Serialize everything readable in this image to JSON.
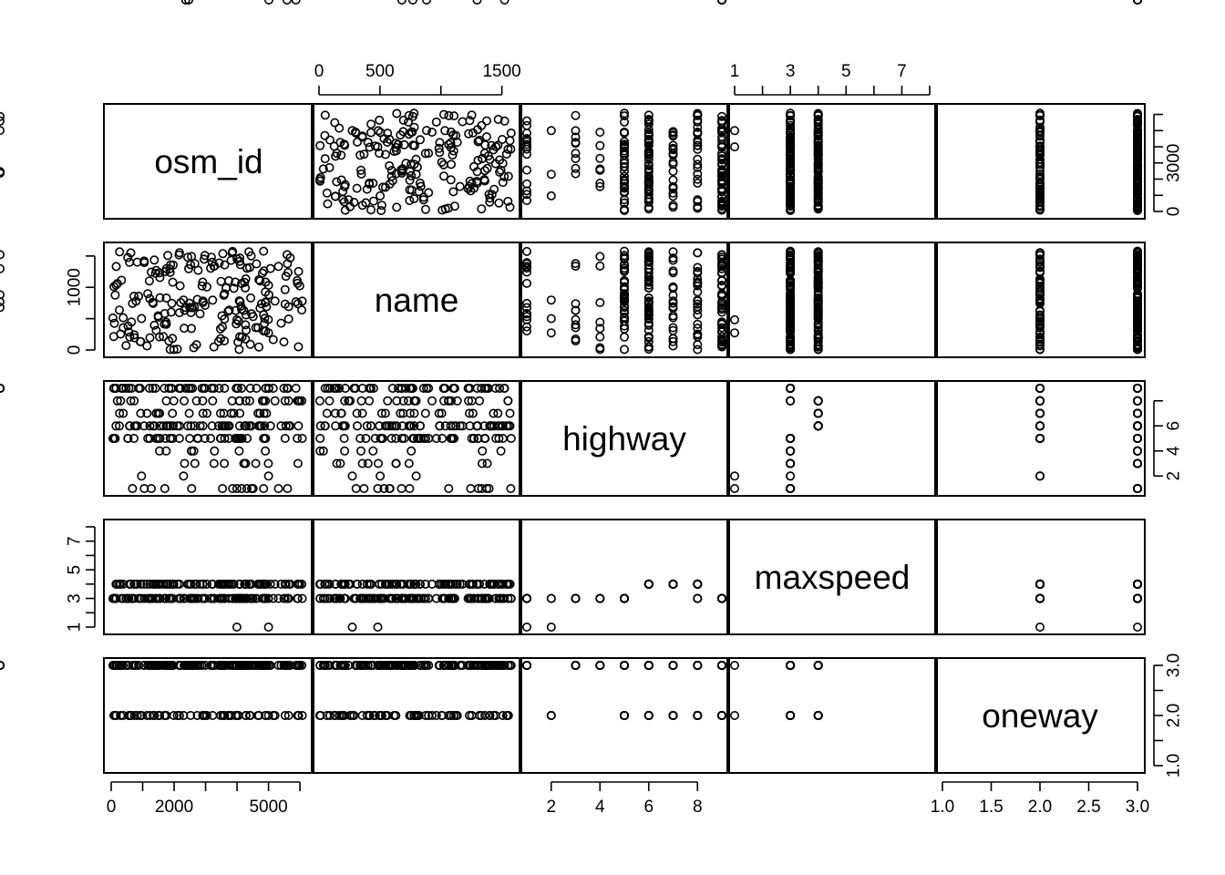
{
  "chart_data": {
    "type": "scatter",
    "subtype": "scatterplot-matrix",
    "variables": [
      "osm_id",
      "name",
      "highway",
      "maxspeed",
      "oneway"
    ],
    "ranges": {
      "osm_id": [
        0,
        6200
      ],
      "name": [
        0,
        1600
      ],
      "highway": [
        1,
        9
      ],
      "maxspeed": [
        1,
        8
      ],
      "oneway": [
        1,
        3
      ]
    },
    "axis_ticks": {
      "top": {
        "name": {
          "values": [
            0,
            500,
            1000,
            1500
          ],
          "labels": [
            "0",
            "500",
            "",
            "1500"
          ]
        },
        "maxspeed": {
          "values": [
            1,
            2,
            3,
            4,
            5,
            6,
            7,
            8
          ],
          "labels": [
            "1",
            "",
            "3",
            "",
            "5",
            "",
            "7",
            ""
          ]
        }
      },
      "bottom": {
        "osm_id": {
          "values": [
            0,
            1000,
            2000,
            3000,
            4000,
            5000,
            6000
          ],
          "labels": [
            "0",
            "",
            "2000",
            "",
            "",
            "5000",
            ""
          ]
        },
        "highway": {
          "values": [
            2,
            4,
            6,
            8
          ],
          "labels": [
            "2",
            "4",
            "6",
            "8"
          ]
        },
        "oneway": {
          "values": [
            1.0,
            1.5,
            2.0,
            2.5,
            3.0
          ],
          "labels": [
            "1.0",
            "1.5",
            "2.0",
            "2.5",
            "3.0"
          ]
        }
      },
      "left": {
        "name": {
          "values": [
            0,
            500,
            1000,
            1500
          ],
          "labels": [
            "0",
            "",
            "1000",
            ""
          ]
        },
        "maxspeed": {
          "values": [
            1,
            2,
            3,
            4,
            5,
            6,
            7,
            8
          ],
          "labels": [
            "1",
            "",
            "3",
            "",
            "5",
            "",
            "7",
            ""
          ]
        }
      },
      "right": {
        "osm_id": {
          "values": [
            0,
            1000,
            2000,
            3000,
            4000,
            5000,
            6000
          ],
          "labels": [
            "0",
            "",
            "",
            "3000",
            "",
            "",
            ""
          ]
        },
        "highway": {
          "values": [
            2,
            4,
            6,
            8
          ],
          "labels": [
            "2",
            "4",
            "6",
            ""
          ]
        },
        "oneway": {
          "values": [
            1.0,
            1.5,
            2.0,
            2.5,
            3.0
          ],
          "labels": [
            "1.0",
            "",
            "2.0",
            "",
            "3.0"
          ]
        }
      }
    },
    "records": {
      "highway": [
        1,
        1,
        1,
        1,
        1,
        1,
        1,
        1,
        1,
        1,
        1,
        1,
        1,
        1,
        1,
        2,
        2,
        2,
        3,
        3,
        3,
        3,
        3,
        3,
        3,
        3,
        3,
        3,
        4,
        4,
        4,
        4,
        4,
        4,
        4,
        4,
        5,
        5,
        5,
        5,
        5,
        5,
        5,
        5,
        5,
        5,
        5,
        5,
        5,
        5,
        5,
        5,
        5,
        5,
        5,
        5,
        5,
        5,
        5,
        5,
        5,
        5,
        5,
        5,
        5,
        5,
        5,
        5,
        5,
        5,
        5,
        5,
        5,
        5,
        5,
        5,
        6,
        6,
        6,
        6,
        6,
        6,
        6,
        6,
        6,
        6,
        6,
        6,
        6,
        6,
        6,
        6,
        6,
        6,
        6,
        6,
        6,
        6,
        6,
        6,
        6,
        6,
        6,
        6,
        6,
        6,
        6,
        6,
        6,
        6,
        6,
        6,
        6,
        6,
        6,
        6,
        6,
        6,
        6,
        6,
        6,
        6,
        6,
        6,
        6,
        6,
        6,
        6,
        6,
        6,
        7,
        7,
        7,
        7,
        7,
        7,
        7,
        7,
        7,
        7,
        7,
        7,
        7,
        7,
        7,
        7,
        7,
        7,
        7,
        7,
        8,
        8,
        8,
        8,
        8,
        8,
        8,
        8,
        8,
        8,
        8,
        8,
        8,
        8,
        8,
        8,
        8,
        8,
        8,
        8,
        8,
        8,
        8,
        8,
        8,
        9,
        9,
        9,
        9,
        9,
        9,
        9,
        9,
        9,
        9,
        9,
        9,
        9,
        9,
        9,
        9,
        9,
        9,
        9,
        9,
        9,
        9,
        9,
        9,
        9,
        9,
        9,
        9,
        9,
        9,
        9,
        9,
        9,
        9,
        9,
        9,
        9,
        9,
        9,
        9,
        9,
        9,
        9,
        9,
        9
      ],
      "maxspeed": [
        1,
        3,
        3,
        3,
        3,
        3,
        3,
        3,
        3,
        3,
        3,
        3,
        3,
        3,
        3,
        1,
        3,
        3,
        3,
        3,
        3,
        3,
        3,
        3,
        3,
        3,
        3,
        3,
        3,
        3,
        3,
        3,
        3,
        3,
        3,
        3,
        3,
        3,
        3,
        3,
        3,
        3,
        3,
        3,
        3,
        3,
        3,
        3,
        3,
        3,
        3,
        3,
        3,
        3,
        3,
        3,
        3,
        3,
        3,
        3,
        3,
        3,
        3,
        3,
        3,
        3,
        3,
        3,
        3,
        3,
        3,
        3,
        3,
        3,
        3,
        3,
        4,
        4,
        4,
        4,
        4,
        4,
        4,
        4,
        4,
        4,
        4,
        4,
        4,
        4,
        4,
        4,
        4,
        4,
        4,
        4,
        4,
        4,
        4,
        4,
        4,
        4,
        4,
        4,
        4,
        4,
        4,
        4,
        4,
        4,
        4,
        4,
        4,
        4,
        4,
        4,
        4,
        4,
        4,
        4,
        4,
        4,
        4,
        4,
        4,
        4,
        4,
        4,
        4,
        4,
        4,
        4,
        4,
        4,
        4,
        4,
        4,
        4,
        4,
        4,
        4,
        4,
        4,
        4,
        4,
        4,
        4,
        4,
        4,
        4,
        4,
        4,
        4,
        4,
        4,
        4,
        4,
        4,
        4,
        4,
        4,
        4,
        4,
        4,
        4,
        4,
        4,
        4,
        4,
        4,
        4,
        3,
        3,
        3,
        3,
        3,
        3,
        3,
        3,
        3,
        3,
        3,
        3,
        3,
        3,
        3,
        3,
        3,
        3,
        3,
        3,
        3,
        3,
        3,
        3,
        3,
        3,
        3,
        3,
        3,
        3,
        3,
        3,
        3,
        3,
        3,
        3,
        3,
        3,
        3,
        3,
        3,
        3,
        3,
        3
      ],
      "oneway": [
        3,
        3,
        3,
        3,
        3,
        3,
        3,
        3,
        3,
        3,
        3,
        3,
        3,
        3,
        3,
        2,
        2,
        2,
        3,
        3,
        3,
        3,
        3,
        3,
        3,
        3,
        3,
        3,
        3,
        3,
        3,
        3,
        3,
        3,
        3,
        3,
        2,
        2,
        2,
        2,
        2,
        2,
        2,
        2,
        2,
        2,
        2,
        2,
        3,
        3,
        3,
        3,
        3,
        3,
        3,
        3,
        3,
        3,
        3,
        3,
        3,
        3,
        3,
        3,
        3,
        3,
        3,
        3,
        3,
        3,
        3,
        3,
        3,
        3,
        3,
        3,
        2,
        2,
        2,
        2,
        2,
        2,
        2,
        2,
        2,
        2,
        2,
        2,
        2,
        2,
        3,
        3,
        3,
        3,
        3,
        3,
        3,
        3,
        3,
        3,
        3,
        3,
        3,
        3,
        3,
        3,
        3,
        3,
        3,
        3,
        3,
        3,
        3,
        3,
        3,
        3,
        3,
        3,
        3,
        3,
        3,
        3,
        3,
        3,
        3,
        3,
        3,
        3,
        3,
        3,
        2,
        2,
        2,
        2,
        2,
        2,
        2,
        2,
        2,
        2,
        3,
        3,
        3,
        3,
        3,
        3,
        3,
        3,
        3,
        3,
        2,
        2,
        2,
        2,
        2,
        2,
        2,
        2,
        2,
        2,
        2,
        2,
        3,
        3,
        3,
        3,
        3,
        3,
        3,
        3,
        3,
        3,
        3,
        3,
        3,
        2,
        2,
        2,
        2,
        2,
        2,
        2,
        2,
        2,
        2,
        2,
        2,
        3,
        3,
        3,
        3,
        3,
        3,
        3,
        3,
        3,
        3,
        3,
        3,
        3,
        3,
        3,
        3,
        3,
        3,
        3,
        3,
        3,
        3,
        3,
        3,
        3,
        3,
        3,
        3,
        3,
        3,
        3,
        3,
        3
      ]
    }
  }
}
